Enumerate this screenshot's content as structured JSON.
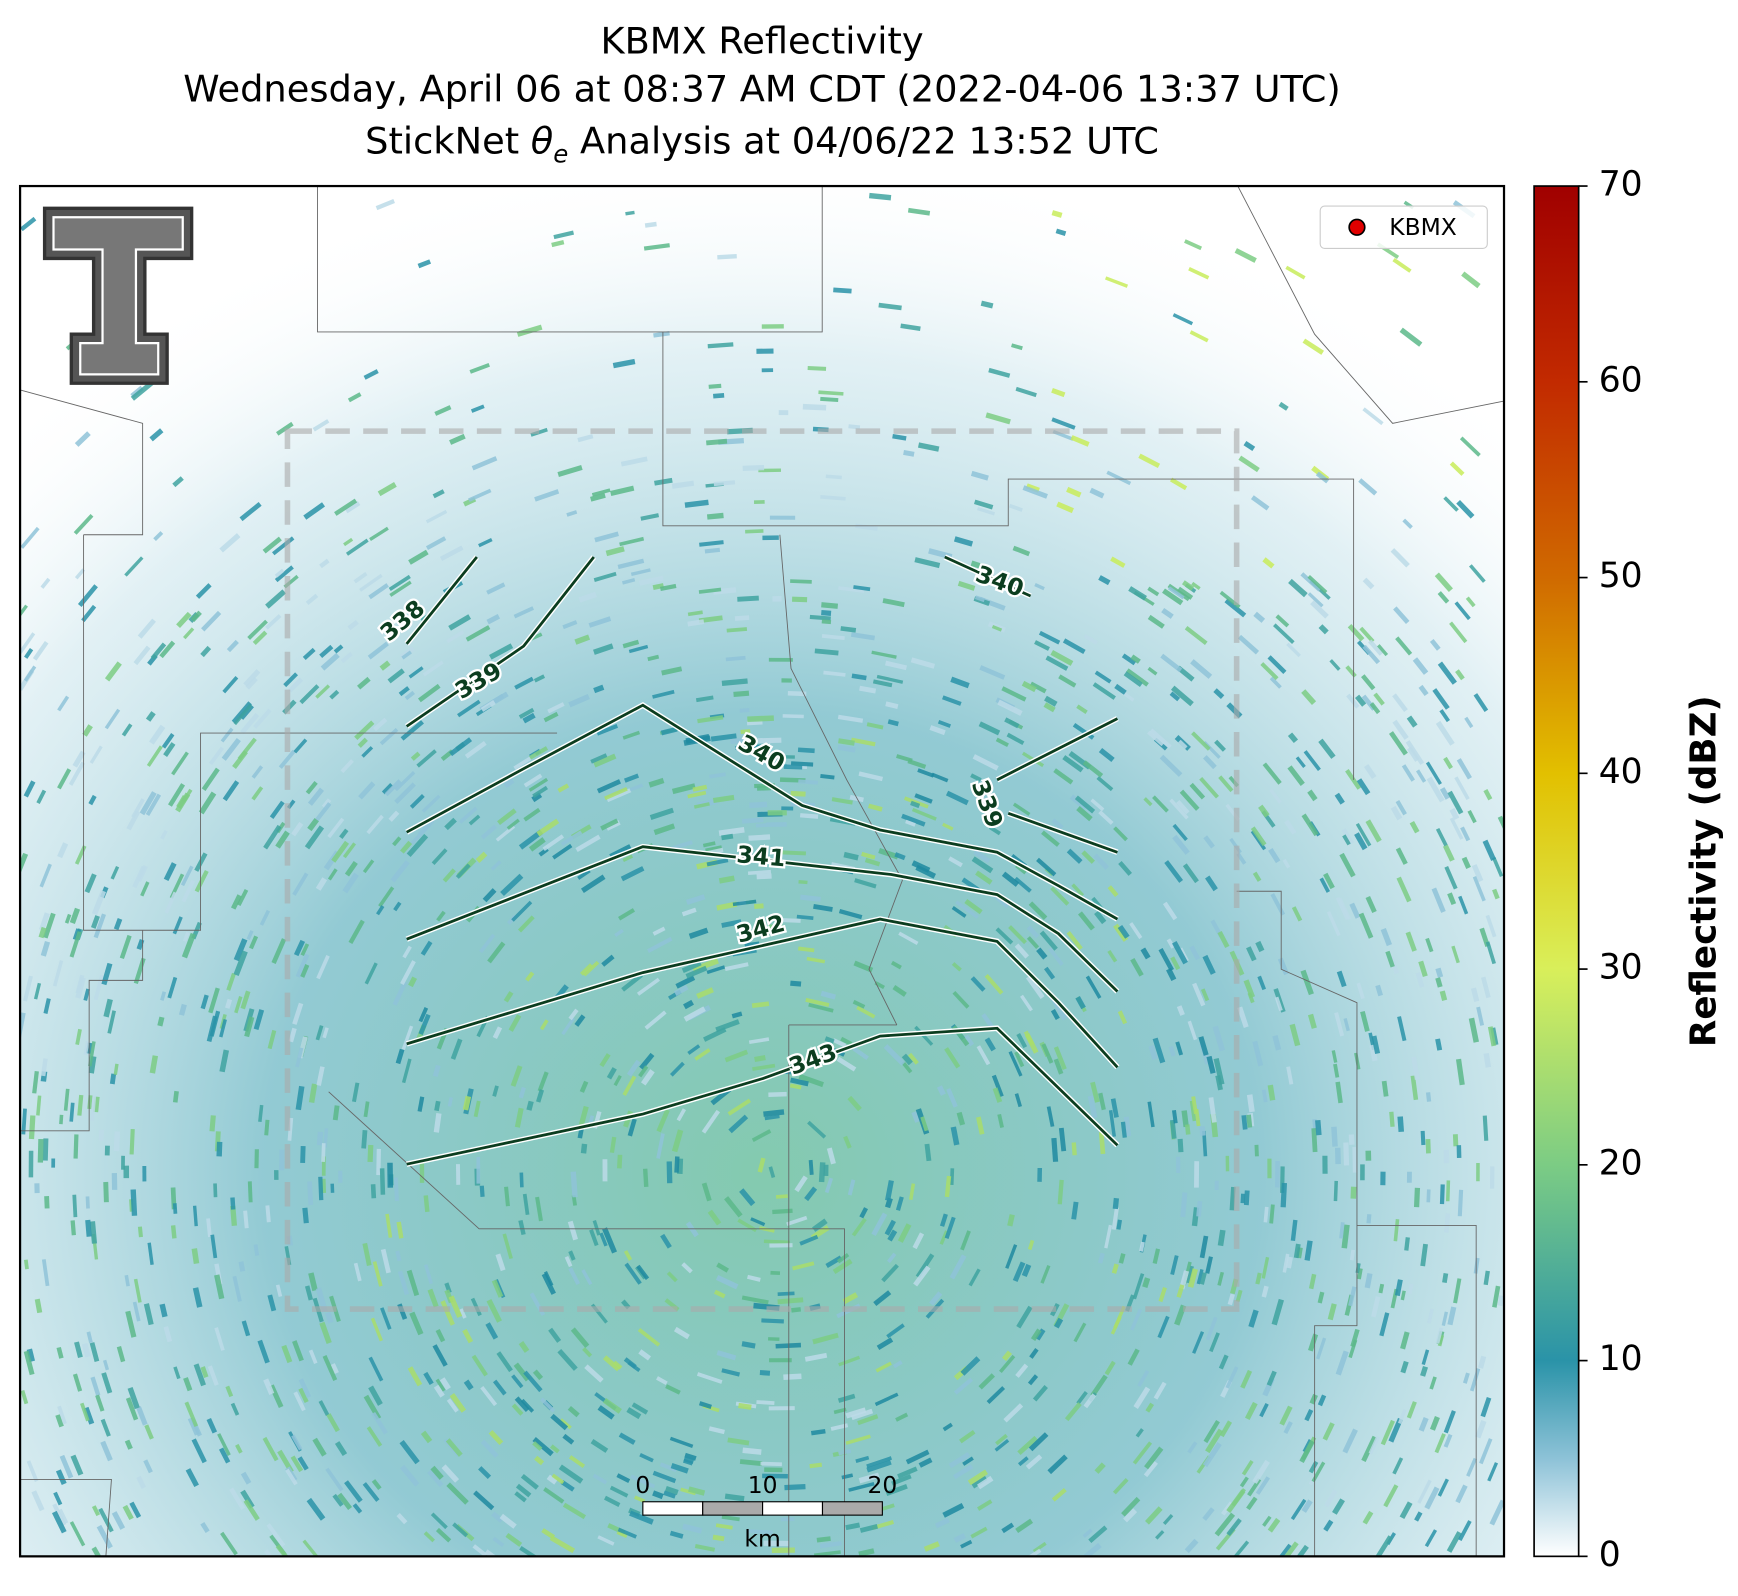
{
  "title": {
    "line1": "KBMX Reflectivity",
    "line2": "Wednesday, April 06 at 08:37 AM CDT (2022-04-06 13:37 UTC)",
    "line3": {
      "before": "StickNet ",
      "symbol": "θ",
      "subscript": "e",
      "after": " Analysis at 04/06/22 13:52 UTC"
    }
  },
  "legend": {
    "label": "KBMX",
    "marker_color": "#e00000"
  },
  "contours": [
    {
      "level": 338
    },
    {
      "level": 339
    },
    {
      "level": 340
    },
    {
      "level": 340
    },
    {
      "level": 339
    },
    {
      "level": 341
    },
    {
      "level": 342
    },
    {
      "level": 343
    }
  ],
  "contour_color": "#0b3d1f",
  "scale_bar": {
    "ticks": [
      0,
      10,
      20
    ],
    "unit": "km"
  },
  "colorbar": {
    "label": "Reflectivity (dBZ)",
    "lim": [
      0,
      70
    ],
    "ticks": [
      0,
      10,
      20,
      30,
      40,
      50,
      60,
      70
    ]
  }
}
